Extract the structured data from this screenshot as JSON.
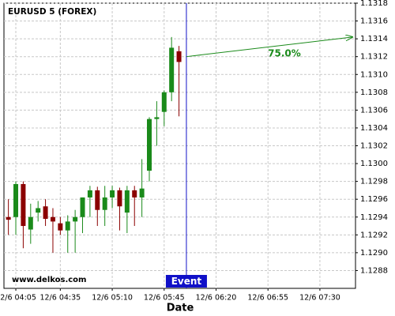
{
  "chart_data": {
    "type": "candlestick",
    "title": "EURUSD 5 (FOREX)",
    "xlabel": "Date",
    "watermark": "www.delkos.com",
    "x": [
      "12/6 04:00",
      "12/6 04:05",
      "12/6 04:10",
      "12/6 04:15",
      "12/6 04:20",
      "12/6 04:25",
      "12/6 04:30",
      "12/6 04:35",
      "12/6 04:40",
      "12/6 04:45",
      "12/6 04:50",
      "12/6 04:55",
      "12/6 05:00",
      "12/6 05:05",
      "12/6 05:10",
      "12/6 05:15",
      "12/6 05:20",
      "12/6 05:25",
      "12/6 05:30",
      "12/6 05:35",
      "12/6 05:40",
      "12/6 05:45",
      "12/6 05:50",
      "12/6 05:55"
    ],
    "open": [
      1.1294,
      1.1294,
      1.12977,
      1.12926,
      1.12945,
      1.12952,
      1.1294,
      1.12933,
      1.12925,
      1.12935,
      1.1294,
      1.12962,
      1.1297,
      1.12948,
      1.12962,
      1.1297,
      1.12945,
      1.1297,
      1.12962,
      1.12992,
      1.1305,
      1.13058,
      1.1308,
      1.13126
    ],
    "high": [
      1.1296,
      1.1298,
      1.1298,
      1.12955,
      1.12958,
      1.1296,
      1.1295,
      1.1294,
      1.12942,
      1.12948,
      1.12962,
      1.12975,
      1.12974,
      1.12975,
      1.12975,
      1.12973,
      1.12975,
      1.12975,
      1.13005,
      1.13052,
      1.1307,
      1.13082,
      1.13142,
      1.13132
    ],
    "low": [
      1.1292,
      1.1292,
      1.12905,
      1.1291,
      1.12935,
      1.1293,
      1.129,
      1.1292,
      1.129,
      1.129,
      1.12922,
      1.1294,
      1.1293,
      1.1293,
      1.1295,
      1.12925,
      1.12922,
      1.1293,
      1.1294,
      1.1298,
      1.1302,
      1.13042,
      1.1307,
      1.13053
    ],
    "close": [
      1.12937,
      1.12977,
      1.1293,
      1.1294,
      1.1295,
      1.12938,
      1.12935,
      1.12925,
      1.12935,
      1.1294,
      1.12962,
      1.1297,
      1.12948,
      1.12962,
      1.1297,
      1.12952,
      1.1297,
      1.12962,
      1.12972,
      1.1305,
      1.13052,
      1.1308,
      1.1313,
      1.13114
    ],
    "up_color": "#1a8a1a",
    "down_color": "#8b0000",
    "xlim": [
      "12/6 03:57",
      "12/6 07:54"
    ],
    "xticks": [
      "12/6 04:05",
      "12/6 04:35",
      "12/6 05:10",
      "12/6 05:45",
      "12/6 06:20",
      "12/6 06:55",
      "12/6 07:30"
    ],
    "ylim": [
      1.1286,
      1.1318
    ],
    "yticks": [
      1.1288,
      {
        "value": 1.129,
        "label": "1.1290"
      },
      1.1292,
      1.1294,
      1.1296,
      1.1298,
      {
        "value": 1.13,
        "label": "1.1300"
      },
      1.1302,
      1.1304,
      1.1306,
      1.1308,
      {
        "value": 1.131,
        "label": "1.1310"
      },
      1.1312,
      1.1314,
      1.1316,
      1.1318
    ],
    "grid": true,
    "event": {
      "label": "Event",
      "x": "12/6 06:00",
      "color": "#1010c8"
    },
    "forecast": {
      "label": "75.0%",
      "x": [
        "12/6 06:00",
        "12/6 07:52"
      ],
      "y": [
        1.1312,
        1.13142
      ],
      "color": "#1a8a1a"
    }
  }
}
